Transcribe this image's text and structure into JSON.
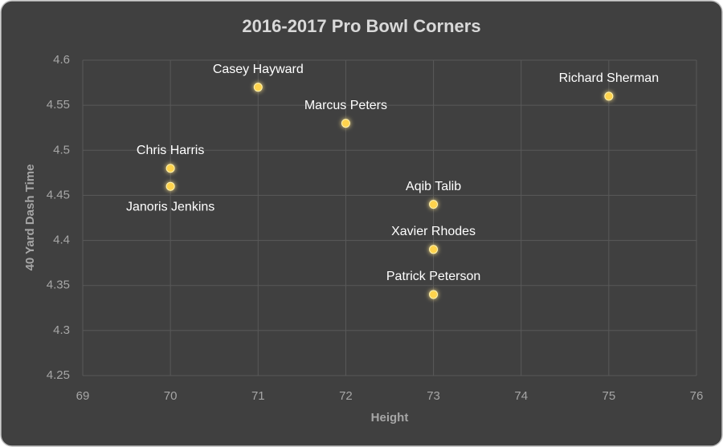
{
  "chart_data": {
    "type": "scatter",
    "title": "2016-2017 Pro Bowl Corners",
    "x_label": "Height",
    "y_label": "40 Yard Dash Time",
    "point_labels": [
      "Casey Hayward",
      "Richard Sherman",
      "Marcus Peters",
      "Chris Harris",
      "Janoris Jenkins",
      "Aqib Talib",
      "Xavier Rhodes",
      "Patrick Peterson"
    ],
    "x": [
      71,
      75,
      72,
      70,
      70,
      73,
      73,
      73
    ],
    "y": [
      4.57,
      4.56,
      4.53,
      4.48,
      4.46,
      4.44,
      4.39,
      4.34
    ],
    "color": "#ffd34e",
    "xlim": [
      69,
      76
    ],
    "xticks": [
      69,
      70,
      71,
      72,
      73,
      74,
      75,
      76
    ],
    "ylim": [
      4.25,
      4.6
    ],
    "yticks": [
      4.25,
      4.3,
      4.35,
      4.4,
      4.45,
      4.5,
      4.55,
      4.6
    ],
    "grid": true
  }
}
